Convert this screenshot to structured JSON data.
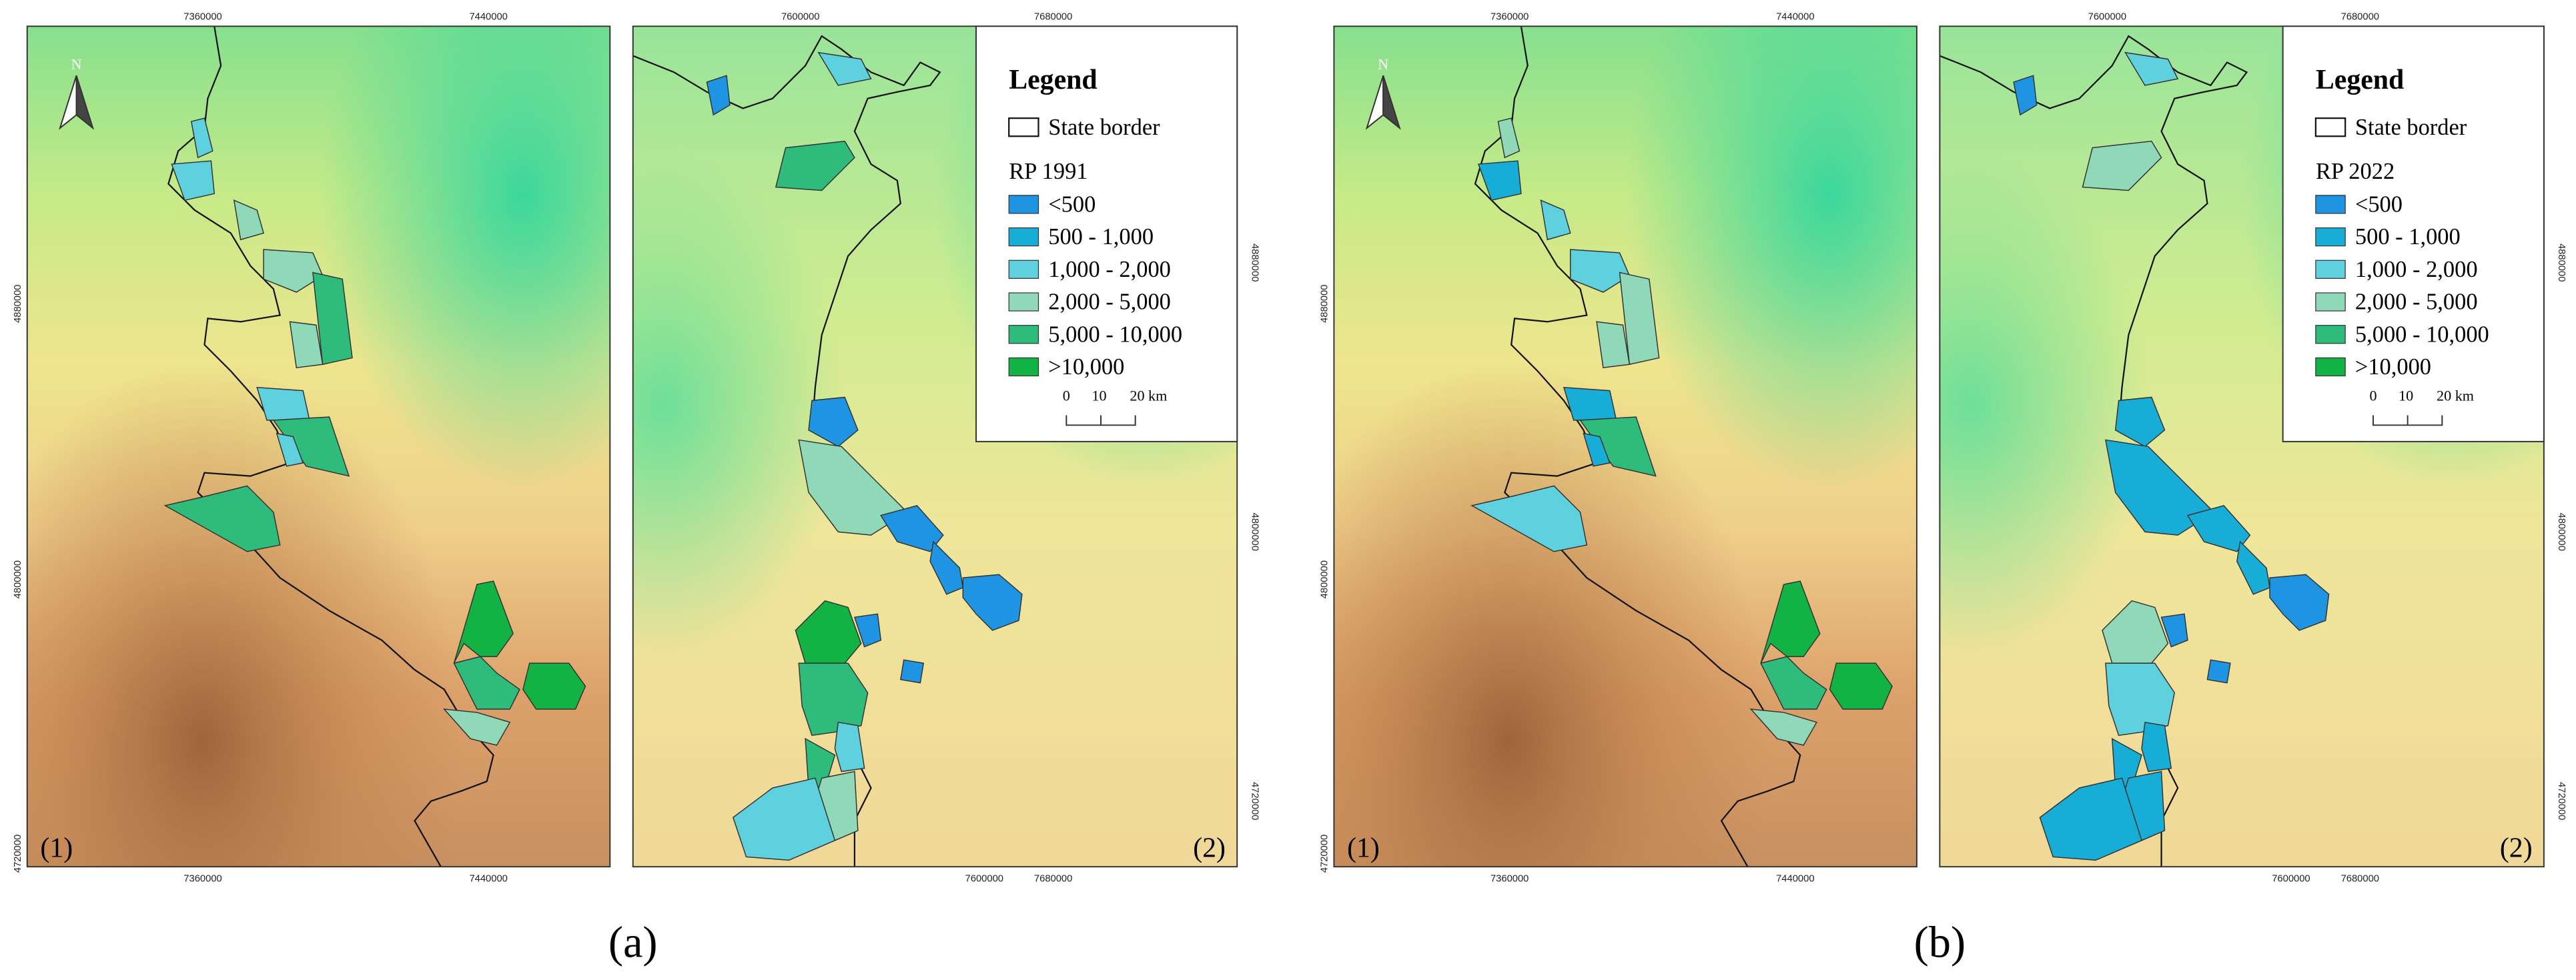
{
  "north": "N",
  "figures": [
    {
      "label": "(a)",
      "legend": {
        "title": "Legend",
        "state_border": "State border",
        "period": "RP 1991",
        "classes": [
          "<500",
          "500 - 1,000",
          "1,000 - 2,000",
          "2,000 - 5,000",
          "5,000 - 10,000",
          ">10,000"
        ],
        "scale": [
          "0",
          "10",
          "20 km"
        ]
      },
      "panels": [
        {
          "label": "(1)",
          "top": [
            7360000,
            7440000
          ],
          "bottom": [
            7360000,
            7440000
          ],
          "side": [
            4880000,
            4800000,
            4720000
          ]
        },
        {
          "label": "(2)",
          "top": [
            7600000,
            7680000
          ],
          "bottom": [
            7600000,
            7680000
          ],
          "side": [
            4880000,
            4800000,
            4720000
          ]
        }
      ]
    },
    {
      "label": "(b)",
      "legend": {
        "title": "Legend",
        "state_border": "State border",
        "period": "RP 2022",
        "classes": [
          "<500",
          "500 - 1,000",
          "1,000 - 2,000",
          "2,000 - 5,000",
          "5,000 - 10,000",
          ">10,000"
        ],
        "scale": [
          "0",
          "10",
          "20 km"
        ]
      },
      "panels": [
        {
          "label": "(1)",
          "top": [
            7360000,
            7440000
          ],
          "bottom": [
            7360000,
            7440000
          ],
          "side": [
            4880000,
            4800000,
            4720000
          ]
        },
        {
          "label": "(2)",
          "top": [
            7600000,
            7680000
          ],
          "bottom": [
            7600000,
            7680000
          ],
          "side": [
            4880000,
            4800000,
            4720000
          ]
        }
      ]
    }
  ]
}
